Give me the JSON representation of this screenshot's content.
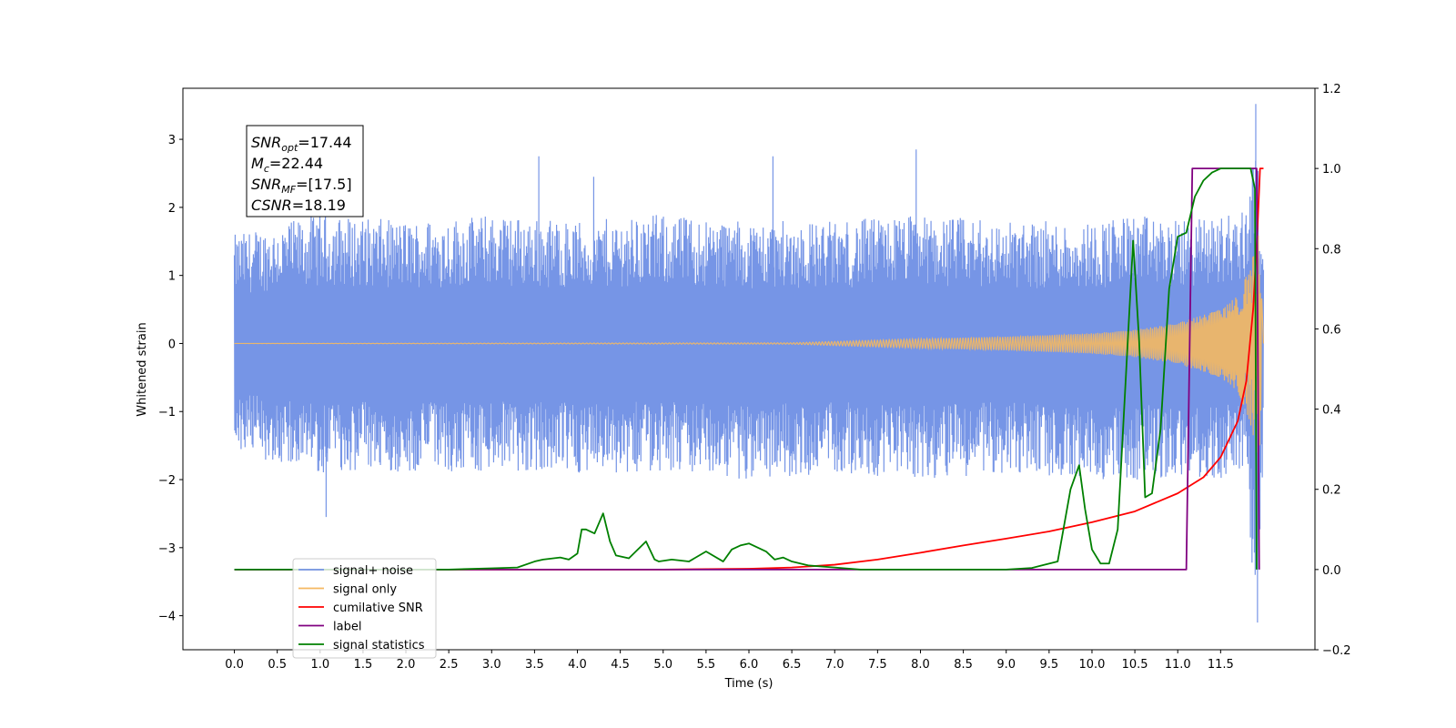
{
  "chart_data": {
    "type": "line",
    "xlabel": "Time (s)",
    "ylabel": "Whitened strain",
    "xlim": [
      -0.6,
      12.6
    ],
    "ylim": [
      -4.5,
      3.75
    ],
    "ylim_right": [
      -0.2,
      1.2
    ],
    "x_ticks": [
      "0.0",
      "0.5",
      "1.0",
      "1.5",
      "2.0",
      "2.5",
      "3.0",
      "3.5",
      "4.0",
      "4.5",
      "5.0",
      "5.5",
      "6.0",
      "6.5",
      "7.0",
      "7.5",
      "8.0",
      "8.5",
      "9.0",
      "9.5",
      "10.0",
      "10.5",
      "11.0",
      "11.5"
    ],
    "y_ticks": [
      "3",
      "2",
      "1",
      "0",
      "−1",
      "−2",
      "−3",
      "−4"
    ],
    "y_ticks_right": [
      "1.2",
      "1.0",
      "0.8",
      "0.6",
      "0.4",
      "0.2",
      "0.0",
      "−0.2"
    ],
    "annotation": {
      "lines": [
        {
          "italic": "SNR",
          "sub": "opt",
          "rest": "=17.44"
        },
        {
          "italic": "M",
          "sub": "c",
          "rest": "=22.44"
        },
        {
          "italic": "SNR",
          "sub": "MF",
          "rest": "=[17.5]"
        },
        {
          "italic": "CSNR",
          "sub": "",
          "rest": "=18.19"
        }
      ]
    },
    "legend_position": "bottom-left",
    "series": [
      {
        "name": "signal+ noise",
        "color": "#7695e6",
        "axis": "left",
        "envelope": {
          "x": [
            0.0,
            1.0,
            2.0,
            3.0,
            4.0,
            5.0,
            6.0,
            7.0,
            8.0,
            9.0,
            10.0,
            10.5,
            11.0,
            11.5,
            11.8,
            11.9,
            11.97,
            12.0
          ],
          "upper": [
            1.6,
            1.9,
            1.8,
            1.9,
            1.8,
            1.9,
            1.8,
            1.8,
            1.9,
            1.8,
            1.8,
            1.9,
            1.8,
            1.9,
            2.0,
            3.5,
            1.6,
            1.3
          ],
          "lower": [
            -1.6,
            -1.9,
            -1.9,
            -1.9,
            -1.9,
            -1.9,
            -2.0,
            -1.9,
            -2.0,
            -1.9,
            -2.0,
            -2.0,
            -2.0,
            -2.0,
            -2.0,
            -4.1,
            -2.7,
            -1.5
          ]
        },
        "spikes": [
          {
            "x": 1.07,
            "y": -2.55
          },
          {
            "x": 4.19,
            "y": 2.45
          },
          {
            "x": 6.28,
            "y": 2.75
          },
          {
            "x": 7.95,
            "y": 2.85
          },
          {
            "x": 3.55,
            "y": 2.75
          },
          {
            "x": 11.91,
            "y": 3.52
          },
          {
            "x": 11.93,
            "y": -4.1
          }
        ]
      },
      {
        "name": "signal only",
        "color": "#f5b860",
        "axis": "left",
        "envelope": {
          "x": [
            0.0,
            6.5,
            7.0,
            8.0,
            9.0,
            10.0,
            10.5,
            11.0,
            11.5,
            11.7,
            11.85,
            11.95,
            12.0
          ],
          "amp": [
            0.0,
            0.01,
            0.03,
            0.07,
            0.1,
            0.15,
            0.2,
            0.3,
            0.5,
            0.7,
            1.2,
            1.7,
            0.0
          ]
        }
      },
      {
        "name": "cumilative SNR",
        "color": "#ff0000",
        "axis": "right",
        "x": [
          0.0,
          5.0,
          6.0,
          6.5,
          7.0,
          7.5,
          8.0,
          8.5,
          9.0,
          9.5,
          10.0,
          10.5,
          11.0,
          11.3,
          11.5,
          11.7,
          11.8,
          11.88,
          11.93,
          11.96,
          12.0
        ],
        "y": [
          0.0,
          0.0,
          0.002,
          0.005,
          0.012,
          0.025,
          0.042,
          0.06,
          0.077,
          0.095,
          0.118,
          0.145,
          0.19,
          0.23,
          0.28,
          0.37,
          0.47,
          0.65,
          0.85,
          1.0,
          1.0
        ]
      },
      {
        "name": "label",
        "color": "#800080",
        "axis": "right",
        "x": [
          0.0,
          11.1,
          11.17,
          11.92,
          11.95
        ],
        "y": [
          0.0,
          0.0,
          1.0,
          1.0,
          0.0
        ]
      },
      {
        "name": "signal statistics",
        "color": "#008000",
        "axis": "right",
        "x": [
          0.0,
          2.5,
          3.0,
          3.3,
          3.5,
          3.6,
          3.8,
          3.9,
          4.0,
          4.05,
          4.1,
          4.2,
          4.3,
          4.38,
          4.45,
          4.6,
          4.8,
          4.9,
          4.95,
          5.1,
          5.3,
          5.5,
          5.7,
          5.8,
          5.9,
          6.0,
          6.2,
          6.3,
          6.4,
          6.5,
          6.7,
          7.0,
          7.3,
          7.6,
          8.0,
          9.0,
          9.3,
          9.6,
          9.75,
          9.85,
          9.92,
          10.0,
          10.1,
          10.2,
          10.3,
          10.4,
          10.48,
          10.55,
          10.62,
          10.7,
          10.8,
          10.9,
          11.0,
          11.1,
          11.2,
          11.3,
          11.4,
          11.5,
          11.65,
          11.85,
          11.9,
          11.92
        ],
        "y": [
          0.0,
          0.0,
          0.003,
          0.005,
          0.02,
          0.025,
          0.03,
          0.025,
          0.04,
          0.1,
          0.1,
          0.09,
          0.14,
          0.07,
          0.035,
          0.028,
          0.07,
          0.025,
          0.02,
          0.025,
          0.02,
          0.045,
          0.02,
          0.05,
          0.06,
          0.065,
          0.045,
          0.025,
          0.03,
          0.02,
          0.01,
          0.005,
          0.0,
          0.0,
          0.0,
          0.0,
          0.004,
          0.02,
          0.2,
          0.26,
          0.15,
          0.05,
          0.015,
          0.015,
          0.1,
          0.5,
          0.82,
          0.57,
          0.18,
          0.19,
          0.35,
          0.7,
          0.83,
          0.84,
          0.93,
          0.97,
          0.99,
          1.0,
          1.0,
          1.0,
          0.95,
          0.0
        ]
      }
    ]
  }
}
